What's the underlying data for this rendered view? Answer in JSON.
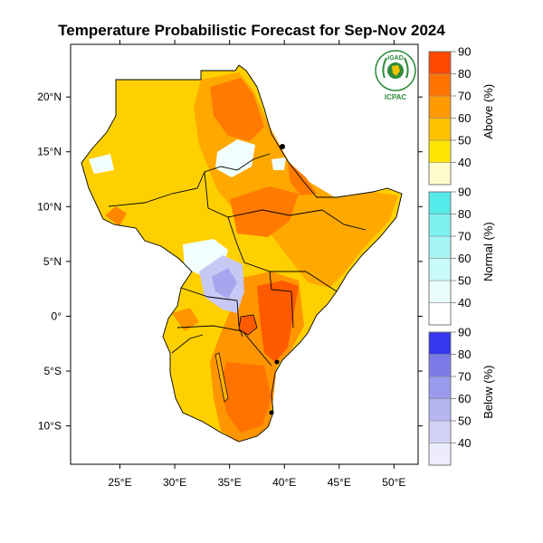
{
  "title": "Temperature Probabilistic Forecast for Sep-Nov 2024",
  "logo": {
    "top_text": "IGAD",
    "bottom_text": "ICPAC"
  },
  "map": {
    "lon_range": [
      20.5,
      52.2
    ],
    "lat_range": [
      -13.5,
      24.8
    ],
    "x_ticks": [
      {
        "value": 25,
        "label": "25°E"
      },
      {
        "value": 30,
        "label": "30°E"
      },
      {
        "value": 35,
        "label": "35°E"
      },
      {
        "value": 40,
        "label": "40°E"
      },
      {
        "value": 45,
        "label": "45°E"
      },
      {
        "value": 50,
        "label": "50°E"
      }
    ],
    "y_ticks": [
      {
        "value": 20,
        "label": "20°N"
      },
      {
        "value": 15,
        "label": "15°N"
      },
      {
        "value": 10,
        "label": "10°N"
      },
      {
        "value": 5,
        "label": "5°N"
      },
      {
        "value": 0,
        "label": "0°"
      },
      {
        "value": -5,
        "label": "5°S"
      },
      {
        "value": -10,
        "label": "10°S"
      }
    ]
  },
  "colorbars": [
    {
      "name": "above",
      "label": "Above (%)",
      "levels": [
        "40",
        "50",
        "60",
        "70",
        "80",
        "90"
      ],
      "colors": [
        "#fffbcc",
        "#ffe600",
        "#ffc200",
        "#ff9900",
        "#ff7400",
        "#ff4800"
      ]
    },
    {
      "name": "normal",
      "label": "Normal (%)",
      "levels": [
        "40",
        "50",
        "60",
        "70",
        "80",
        "90"
      ],
      "colors": [
        "#ffffff",
        "#e9fdfd",
        "#c8fafa",
        "#a5f5f5",
        "#7df0f0",
        "#55eaea"
      ]
    },
    {
      "name": "below",
      "label": "Below (%)",
      "levels": [
        "40",
        "50",
        "60",
        "70",
        "80",
        "90"
      ],
      "colors": [
        "#ececfb",
        "#d1d1f6",
        "#b5b5f2",
        "#9999ee",
        "#7b7be8",
        "#3636ee"
      ]
    }
  ],
  "colors": {
    "above_50": "#ffd000",
    "above_60": "#ffa800",
    "above_70": "#ff8800",
    "above_80": "#ff6a00",
    "above_90": "#ff4800",
    "normal_40": "#f2ffff",
    "below_50": "#c8c8f4",
    "below_60": "#a6a6ee"
  }
}
